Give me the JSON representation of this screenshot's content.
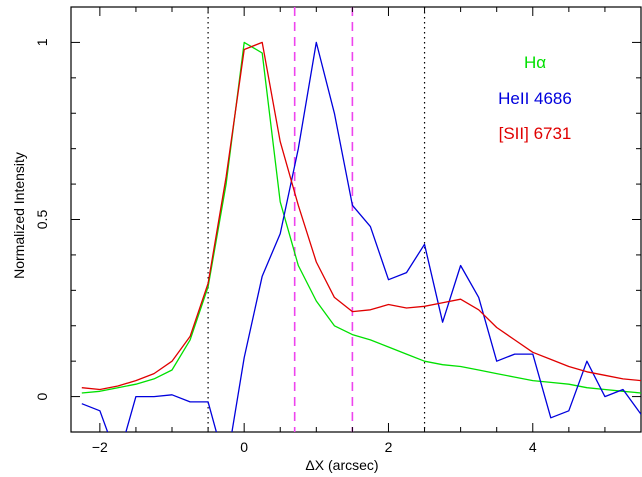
{
  "chart_data": {
    "type": "line",
    "title": "",
    "xlabel": "ΔX (arcsec)",
    "ylabel": "Normalized Intensity",
    "xlim": [
      -2.4,
      5.5
    ],
    "ylim": [
      -0.1,
      1.1
    ],
    "xticks": [
      -2,
      0,
      2,
      4
    ],
    "xtick_labels": [
      "−2",
      "0",
      "2",
      "4"
    ],
    "yticks": [
      0,
      0.5,
      1
    ],
    "ytick_labels": [
      "0",
      "0.5",
      "1"
    ],
    "grid": false,
    "legend_position": "top-right",
    "series": [
      {
        "name": "Hα",
        "color": "#00e000",
        "x": [
          -2.25,
          -2.0,
          -1.75,
          -1.5,
          -1.25,
          -1.0,
          -0.75,
          -0.5,
          -0.25,
          0.0,
          0.25,
          0.5,
          0.75,
          1.0,
          1.25,
          1.5,
          1.75,
          2.0,
          2.25,
          2.5,
          2.75,
          3.0,
          3.25,
          3.5,
          3.75,
          4.0,
          4.25,
          4.5,
          4.75,
          5.0,
          5.25,
          5.5
        ],
        "y": [
          0.01,
          0.015,
          0.025,
          0.035,
          0.05,
          0.075,
          0.16,
          0.31,
          0.6,
          1.0,
          0.97,
          0.55,
          0.37,
          0.27,
          0.2,
          0.175,
          0.16,
          0.14,
          0.12,
          0.1,
          0.09,
          0.085,
          0.075,
          0.065,
          0.055,
          0.045,
          0.04,
          0.035,
          0.025,
          0.02,
          0.015,
          0.01
        ]
      },
      {
        "name": "HeII 4686",
        "color": "#0000dd",
        "x": [
          -2.25,
          -2.0,
          -1.75,
          -1.5,
          -1.25,
          -1.0,
          -0.75,
          -0.5,
          -0.25,
          0.0,
          0.25,
          0.5,
          0.75,
          1.0,
          1.25,
          1.5,
          1.75,
          2.0,
          2.25,
          2.5,
          2.75,
          3.0,
          3.25,
          3.5,
          3.75,
          4.0,
          4.25,
          4.5,
          4.75,
          5.0,
          5.25,
          5.5
        ],
        "y": [
          -0.02,
          -0.04,
          -0.18,
          0.0,
          0.0,
          0.005,
          -0.015,
          -0.015,
          -0.2,
          0.11,
          0.34,
          0.46,
          0.7,
          1.0,
          0.8,
          0.54,
          0.48,
          0.33,
          0.35,
          0.43,
          0.21,
          0.37,
          0.28,
          0.1,
          0.12,
          0.12,
          -0.06,
          -0.04,
          0.1,
          0.0,
          0.02,
          -0.05
        ]
      },
      {
        "name": "[SII] 6731",
        "color": "#e00000",
        "x": [
          -2.25,
          -2.0,
          -1.75,
          -1.5,
          -1.25,
          -1.0,
          -0.75,
          -0.5,
          -0.25,
          0.0,
          0.25,
          0.5,
          0.75,
          1.0,
          1.25,
          1.5,
          1.75,
          2.0,
          2.25,
          2.5,
          2.75,
          3.0,
          3.25,
          3.5,
          3.75,
          4.0,
          4.25,
          4.5,
          4.75,
          5.0,
          5.25,
          5.5
        ],
        "y": [
          0.025,
          0.02,
          0.03,
          0.045,
          0.065,
          0.1,
          0.17,
          0.32,
          0.62,
          0.98,
          1.0,
          0.72,
          0.54,
          0.38,
          0.28,
          0.24,
          0.245,
          0.26,
          0.25,
          0.255,
          0.265,
          0.275,
          0.245,
          0.195,
          0.16,
          0.125,
          0.105,
          0.085,
          0.07,
          0.06,
          0.05,
          0.045
        ]
      }
    ],
    "vertical_lines": [
      {
        "x": -0.5,
        "color": "#000000",
        "style": "dotted"
      },
      {
        "x": 2.5,
        "color": "#000000",
        "style": "dotted"
      },
      {
        "x": 0.7,
        "color": "#ee44ee",
        "style": "dashed"
      },
      {
        "x": 1.5,
        "color": "#ee44ee",
        "style": "dashed"
      }
    ]
  }
}
